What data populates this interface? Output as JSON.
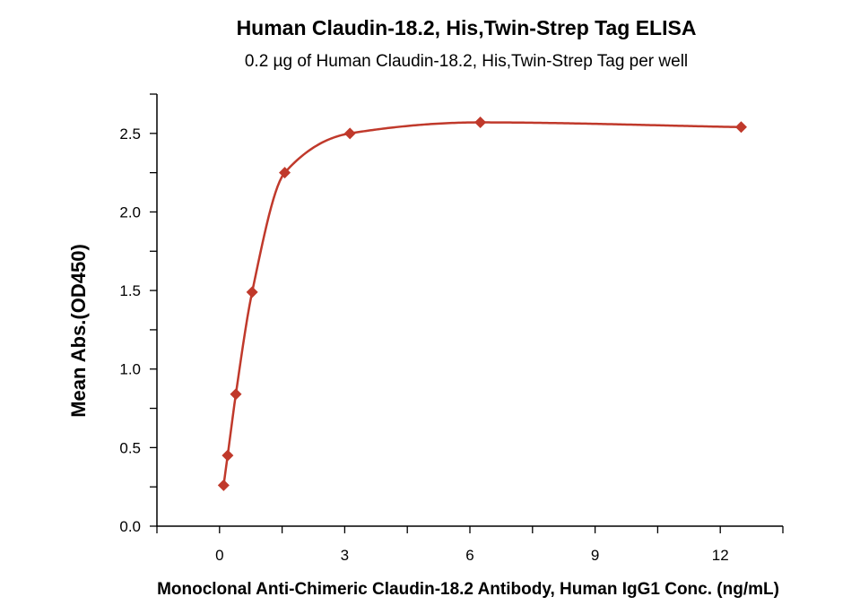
{
  "chart_data": {
    "type": "scatter",
    "title": "Human Claudin-18.2, His,Twin-Strep Tag ELISA",
    "subtitle": "0.2 µg of Human Claudin-18.2, His,Twin-Strep Tag per well",
    "xlabel": "Monoclonal Anti-Chimeric Claudin-18.2 Antibody, Human IgG1 Conc. (ng/mL)",
    "ylabel": "Mean Abs.(OD450)",
    "xlim": [
      -1.5,
      13.5
    ],
    "ylim": [
      0,
      2.75
    ],
    "x_ticks": [
      0,
      3,
      6,
      9,
      12
    ],
    "x_tick_labels": [
      "0",
      "3",
      "6",
      "9",
      "12"
    ],
    "y_ticks": [
      0.0,
      0.5,
      1.0,
      1.5,
      2.0,
      2.5
    ],
    "y_tick_labels": [
      "0.0",
      "0.5",
      "1.0",
      "1.5",
      "2.0",
      "2.5"
    ],
    "series": [
      {
        "x": [
          0.098,
          0.195,
          0.391,
          0.781,
          1.563,
          3.125,
          6.25,
          12.5
        ],
        "y": [
          0.26,
          0.45,
          0.84,
          1.49,
          2.25,
          2.5,
          2.57,
          2.54
        ],
        "marker": "diamond",
        "fit": "sigmoidal"
      }
    ],
    "colors": {
      "series": "#C0392B",
      "axis": "#000000"
    },
    "grid": false,
    "legend": "none"
  }
}
